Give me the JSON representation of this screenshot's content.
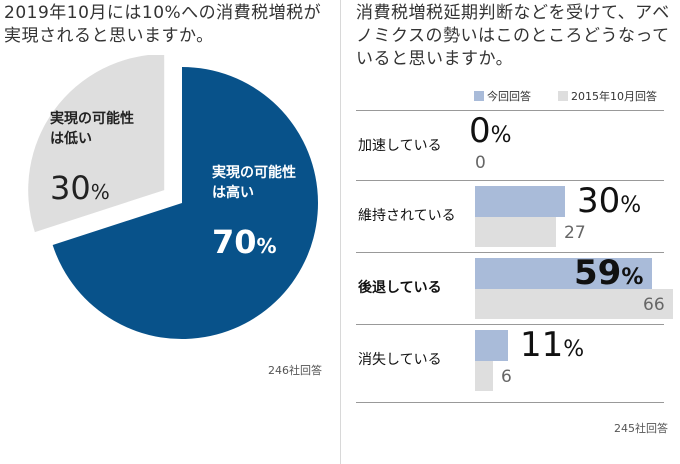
{
  "left": {
    "title": "2019年10月には10%への消費税増税が実現されると思いますか。",
    "note": "246社回答"
  },
  "right": {
    "title": "消費税増税延期判断などを受けて、アベノミクスの勢いはこのところどうなっていると思いますか。",
    "note": "245社回答"
  },
  "chart_data": [
    {
      "type": "pie",
      "slices": [
        {
          "label": "実現の可能性は高い",
          "value": 70,
          "color": "#08528a",
          "text_color": "#ffffff"
        },
        {
          "label": "実現の可能性は低い",
          "value": 30,
          "color": "#dedede",
          "text_color": "#222222"
        }
      ],
      "unit": "%"
    },
    {
      "type": "bar",
      "orientation": "horizontal",
      "categories": [
        "加速している",
        "維持されている",
        "後退している",
        "消失している"
      ],
      "series": [
        {
          "name": "今回回答",
          "values": [
            0,
            30,
            59,
            11
          ],
          "color": "#a9bbd9"
        },
        {
          "name": "2015年10月回答",
          "values": [
            0,
            27,
            66,
            6
          ],
          "color": "#dedede"
        }
      ],
      "unit": "%",
      "highlight_category": "後退している",
      "legend": "top-right"
    }
  ]
}
